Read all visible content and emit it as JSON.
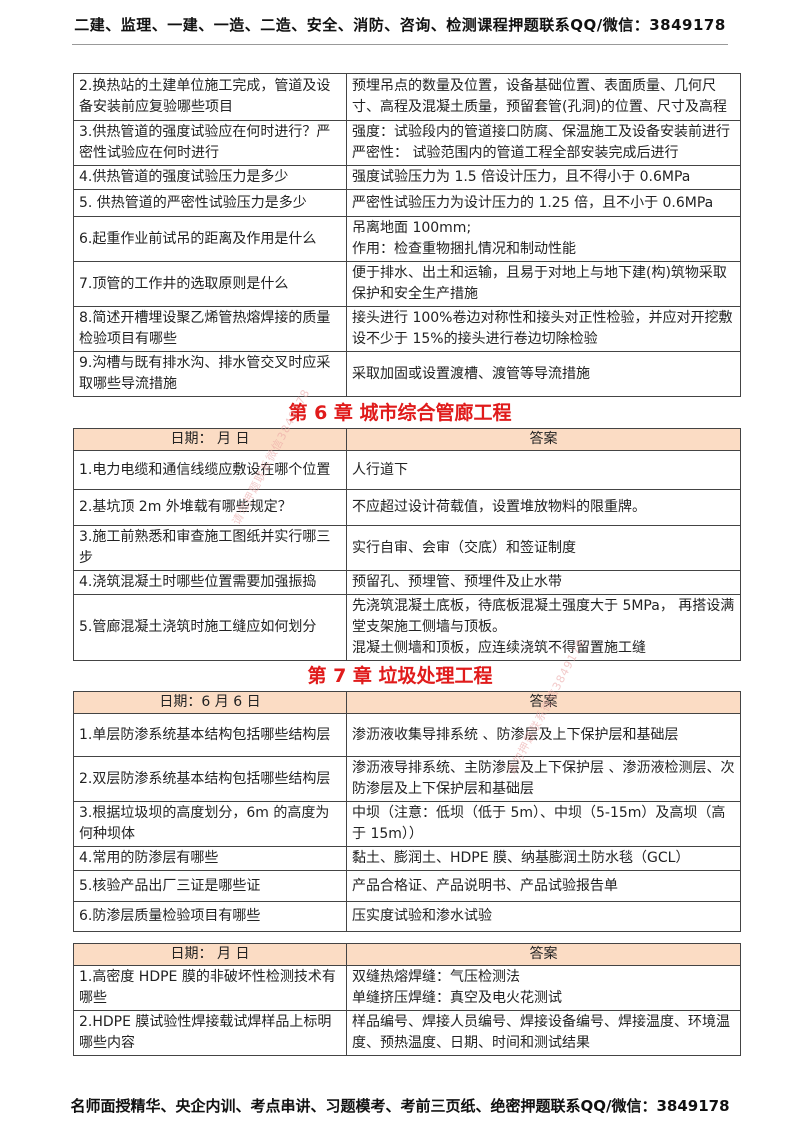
{
  "header": "二建、监理、一建、一造、二造、安全、消防、咨询、检测课程押题联系QQ/微信：3849178",
  "footer": "名师面授精华、央企内训、考点串讲、习题模考、考前三页纸、绝密押题联系QQ/微信：3849178",
  "watermark": "请勿押题联系微信3849178",
  "table_top": {
    "rows": [
      {
        "q": "2.换热站的土建单位施工完成，管道及设备安装前应复验哪些项目",
        "a": [
          "预埋吊点的数量及位置，设备基础位置、表面质量、几何尺寸、高程及混凝土质量，预留套管(孔洞)的位置、尺寸及高程"
        ]
      },
      {
        "q": "3.供热管道的强度试验应在何时进行？严密性试验应在何时进行",
        "a": [
          "强度：试验段内的管道接口防腐、保温施工及设备安装前进行",
          "严密性：  试验范围内的管道工程全部安装完成后进行"
        ]
      },
      {
        "q": "4.供热管道的强度试验压力是多少",
        "a": [
          "强度试验压力为 1.5 倍设计压力，且不得小于 0.6MPa"
        ]
      },
      {
        "q": "5.  供热管道的严密性试验压力是多少",
        "a": [
          "严密性试验压力为设计压力的 1.25 倍，且不小于 0.6MPa"
        ]
      },
      {
        "q": "6.起重作业前试吊的距离及作用是什么",
        "a": [
          "吊离地面 100mm;",
          "作用：检查重物捆扎情况和制动性能"
        ]
      },
      {
        "q": "7.顶管的工作井的选取原则是什么",
        "a": [
          "便于排水、出土和运输，且易于对地上与地下建(构)筑物采取保护和安全生产措施"
        ]
      },
      {
        "q": "8.简述开槽埋设聚乙烯管热熔焊接的质量检验项目有哪些",
        "a": [
          "接头进行 100%卷边对称性和接头对正性检验，并应对开挖敷设不少于 15%的接头进行卷边切除检验"
        ]
      },
      {
        "q": "9.沟槽与既有排水沟、排水管交叉时应采取哪些导流措施",
        "a": [
          "采取加固或设置渡槽、渡管等导流措施"
        ]
      }
    ]
  },
  "chapter6": {
    "title": "第 6 章  城市综合管廊工程",
    "date_label": "日期：    月     日",
    "answer_label": "答案",
    "rows": [
      {
        "q": "1.电力电缆和通信线缆应敷设在哪个位置",
        "a": [
          "人行道下"
        ]
      },
      {
        "q": "2.基坑顶 2m 外堆载有哪些规定？",
        "a": [
          "不应超过设计荷载值，设置堆放物料的限重牌。"
        ]
      },
      {
        "q": "3.施工前熟悉和审查施工图纸并实行哪三步",
        "a": [
          "实行自审、会审（交底）和签证制度"
        ]
      },
      {
        "q": "4.浇筑混凝土时哪些位置需要加强振捣",
        "a": [
          "预留孔、预埋管、预埋件及止水带"
        ]
      },
      {
        "q": "5.管廊混凝土浇筑时施工缝应如何划分",
        "a": [
          "先浇筑混凝土底板，待底板混凝土强度大于 5MPa，  再搭设满堂支架施工侧墙与顶板。",
          "混凝土侧墙和顶板，应连续浇筑不得留置施工缝"
        ]
      }
    ]
  },
  "chapter7": {
    "title": "第 7 章  垃圾处理工程",
    "date_label": "日期：6 月  6   日",
    "answer_label": "答案",
    "rows": [
      {
        "q": "1.单层防渗系统基本结构包括哪些结构层",
        "a": [
          "渗沥液收集导排系统  、防渗层及上下保护层和基础层"
        ]
      },
      {
        "q": "2.双层防渗系统基本结构包括哪些结构层",
        "a": [
          "渗沥液导排系统、主防渗层及上下保护层  、渗沥液检测层、次防渗层及上下保护层和基础层"
        ]
      },
      {
        "q": "3.根据垃圾坝的高度划分，6m 的高度为何种坝体",
        "a": [
          "中坝（注意：低坝（低于  5m）、中坝（5-15m）及高坝（高于 15m））"
        ]
      },
      {
        "q": "4.常用的防渗层有哪些",
        "a": [
          "黏土、膨润土、HDPE 膜、纳基膨润土防水毯（GCL）"
        ]
      },
      {
        "q": "5.核验产品出厂三证是哪些证",
        "a": [
          "产品合格证、产品说明书、产品试验报告单"
        ]
      },
      {
        "q": "6.防渗层质量检验项目有哪些",
        "a": [
          "压实度试验和渗水试验"
        ]
      }
    ]
  },
  "table_last": {
    "date_label": "日期：    月     日",
    "answer_label": "答案",
    "rows": [
      {
        "q": "1.高密度  HDPE  膜的非破坏性检测技术有哪些",
        "a": [
          "双缝热熔焊缝：气压检测法",
          "单缝挤压焊缝：真空及电火花测试"
        ]
      },
      {
        "q": "2.HDPE 膜试验性焊接载试焊样品上标明哪些内容",
        "a": [
          "样品编号、焊接人员编号、焊接设备编号、焊接温度、环境温度、预热温度、日期、时间和测试结果"
        ]
      }
    ]
  }
}
